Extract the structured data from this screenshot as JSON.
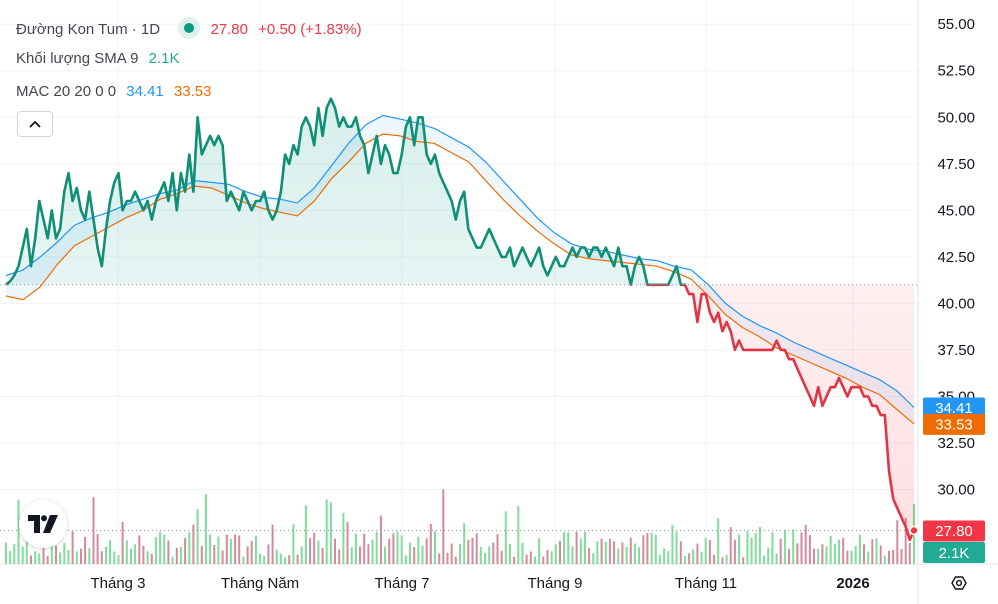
{
  "legend": {
    "symbol": "Đường Kon Tum · 1D",
    "last": "27.80",
    "change": "+0.50 (+1.83%)",
    "volume_label": "Khối lượng SMA 9",
    "volume_value": "2.1K",
    "mac_label": "MAC 20 20 0 0",
    "mac_upper": "34.41",
    "mac_lower": "33.53"
  },
  "colors": {
    "up": "#089981",
    "down": "#f23645",
    "price_line_up": "#0f8f76",
    "price_line_down": "#e13545",
    "mac_upper": "#2196f3",
    "mac_lower": "#ef6c00",
    "vol_up": "#7fdc9a",
    "vol_down": "#d38a9a"
  },
  "chart_data": {
    "type": "line",
    "yaxis": {
      "ylim": [
        26.0,
        56.3
      ],
      "ticks": [
        "55.00",
        "52.50",
        "50.00",
        "47.50",
        "45.00",
        "42.50",
        "40.00",
        "37.50",
        "35.00",
        "32.50",
        "30.00"
      ]
    },
    "xaxis": {
      "labels": [
        "Tháng 3",
        "Tháng Năm",
        "Tháng 7",
        "Tháng 9",
        "Tháng 11",
        "2026"
      ]
    },
    "baseline": 41.0,
    "price_labels": {
      "mac_upper": "34.41",
      "mac_lower": "33.53",
      "last": "27.80",
      "volume": "2.1K"
    },
    "series": [
      {
        "values": [
          41.0,
          41.2,
          41.5,
          42.0,
          43.0,
          44.0,
          42.0,
          43.5,
          45.5,
          44.5,
          43.5,
          45.0,
          43.5,
          44.0,
          46.0,
          47.0,
          45.5,
          46.2,
          45.0,
          44.5,
          46.0,
          44.5,
          43.0,
          42.0,
          44.0,
          45.5,
          46.5,
          47.0,
          45.0,
          45.5,
          45.5,
          46.0,
          45.5,
          45.0,
          45.5,
          44.5,
          45.5,
          46.0,
          46.5,
          45.5,
          47.0,
          45.0,
          47.0,
          46.0,
          48.0,
          46.0,
          50.0,
          48.0,
          48.5,
          49.0,
          48.5,
          49.0,
          48.5,
          45.5,
          46.0,
          45.5,
          45.0,
          46.0,
          45.5,
          45.0,
          45.5,
          45.5,
          46.0,
          45.0,
          44.5,
          45.0,
          46.0,
          48.0,
          47.5,
          48.5,
          48.0,
          49.5,
          50.0,
          49.5,
          48.5,
          50.5,
          49.0,
          50.5,
          51.0,
          50.5,
          49.5,
          50.0,
          49.5,
          49.5,
          50.0,
          49.0,
          48.5,
          47.0,
          48.0,
          49.0,
          47.5,
          48.5,
          48.0,
          47.0,
          47.0,
          48.0,
          49.5,
          50.0,
          48.5,
          50.0,
          50.0,
          48.0,
          47.5,
          48.0,
          47.0,
          46.5,
          46.0,
          45.5,
          44.5,
          45.5,
          46.0,
          44.0,
          43.5,
          43.0,
          43.0,
          43.5,
          44.0,
          43.5,
          43.0,
          42.5,
          42.5,
          43.0,
          42.0,
          42.5,
          43.0,
          42.5,
          42.0,
          42.5,
          43.0,
          42.0,
          41.5,
          42.0,
          42.5,
          42.0,
          42.0,
          42.5,
          43.0,
          42.5,
          43.0,
          43.0,
          42.5,
          43.0,
          43.0,
          42.5,
          43.0,
          42.5,
          42.0,
          43.0,
          42.0,
          42.0,
          41.0,
          42.0,
          42.5,
          42.0,
          41.0,
          41.0,
          41.0,
          41.0,
          41.0,
          41.0,
          41.5,
          42.0,
          41.0,
          41.0,
          40.5,
          40.5,
          39.0,
          40.5,
          40.5,
          39.5,
          39.0,
          39.5,
          38.5,
          39.0,
          38.5,
          37.5,
          38.0,
          37.5,
          37.5,
          37.5,
          37.5,
          37.5,
          37.5,
          37.5,
          37.5,
          38.0,
          37.5,
          37.5,
          37.0,
          37.0,
          36.5,
          36.0,
          35.5,
          35.0,
          34.5,
          35.5,
          34.5,
          35.0,
          35.5,
          35.5,
          36.0,
          35.5,
          35.0,
          35.5,
          35.5,
          35.5,
          35.0,
          35.0,
          34.5,
          34.5,
          34.0,
          34.0,
          31.0,
          29.5,
          29.0,
          28.5,
          28.0,
          27.3,
          27.8
        ]
      },
      {
        "name": "34.41",
        "values": [
          41.5,
          41.8,
          42.5,
          43.3,
          44.2,
          44.6,
          44.9,
          45.3,
          45.6,
          45.9,
          46.1,
          46.6,
          46.5,
          46.4,
          46.0,
          45.7,
          45.6,
          45.4,
          46.2,
          47.4,
          48.6,
          49.6,
          50.1,
          49.9,
          49.7,
          49.4,
          48.9,
          48.4,
          47.6,
          46.6,
          45.6,
          44.6,
          43.8,
          43.2,
          42.9,
          42.8,
          42.6,
          42.4,
          42.3,
          42.0,
          41.8,
          41.0,
          40.0,
          39.3,
          38.8,
          38.4,
          37.9,
          37.5,
          37.1,
          36.7,
          36.3,
          35.9,
          35.3,
          34.41
        ]
      },
      {
        "name": "33.53",
        "values": [
          40.4,
          40.2,
          40.9,
          42.1,
          43.1,
          43.6,
          44.1,
          44.6,
          45.0,
          45.6,
          45.9,
          46.3,
          46.2,
          45.8,
          45.4,
          45.1,
          44.9,
          44.7,
          45.5,
          46.7,
          47.6,
          48.6,
          49.1,
          49.0,
          48.7,
          48.6,
          48.1,
          47.6,
          46.6,
          45.6,
          44.7,
          43.9,
          43.2,
          42.6,
          42.4,
          42.3,
          42.2,
          42.1,
          42.0,
          41.7,
          41.3,
          40.4,
          39.4,
          38.7,
          38.2,
          37.6,
          37.2,
          36.8,
          36.4,
          36.0,
          35.5,
          35.1,
          34.3,
          33.53
        ]
      }
    ]
  }
}
